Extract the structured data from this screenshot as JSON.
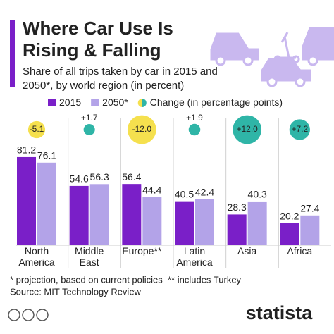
{
  "chart_data": {
    "type": "bar",
    "title": "Where Car Use Is Rising & Falling",
    "subtitle": "Share of all trips taken by car in 2015 and 2050*, by world region (in percent)",
    "categories": [
      "North America",
      "Middle East",
      "Europe**",
      "Latin America",
      "Asia",
      "Africa"
    ],
    "series": [
      {
        "name": "2015",
        "color": "#7a1fc8",
        "values": [
          81.2,
          54.6,
          56.4,
          40.5,
          28.3,
          20.2
        ]
      },
      {
        "name": "2050*",
        "color": "#b3a3e8",
        "values": [
          76.1,
          56.3,
          44.4,
          42.4,
          40.3,
          27.4
        ]
      }
    ],
    "change": {
      "name": "Change (in percentage points)",
      "values": [
        -5.1,
        1.7,
        -12,
        1.9,
        12,
        7.2
      ],
      "value_labels": [
        "-5.1",
        "+1.7",
        "-12.0",
        "+1.9",
        "+12.0",
        "+7.2"
      ],
      "negative_color": "#f5e04e",
      "positive_color": "#2fb5a7"
    },
    "ylim": [
      0,
      100
    ],
    "notes": [
      "* projection, based on current policies",
      "** includes Turkey"
    ],
    "source": "Source: MIT Technology Review",
    "brand": "statista"
  }
}
